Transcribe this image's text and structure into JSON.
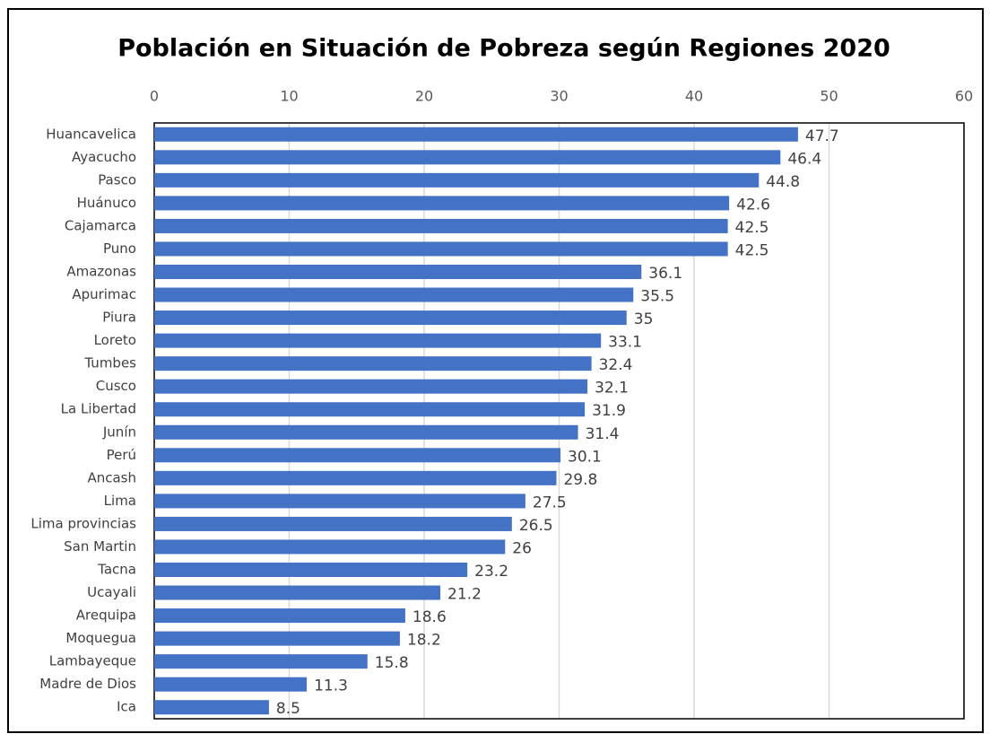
{
  "chart_data": {
    "type": "bar",
    "orientation": "horizontal",
    "title": "Población en Situación de Pobreza según Regiones 2020",
    "categories": [
      "Huancavelica",
      "Ayacucho",
      "Pasco",
      "Huánuco",
      "Cajamarca",
      "Puno",
      "Amazonas",
      "Apurimac",
      "Piura",
      "Loreto",
      "Tumbes",
      "Cusco",
      "La Libertad",
      "Junín",
      "Perú",
      "Ancash",
      "Lima",
      "Lima provincias",
      "San Martin",
      "Tacna",
      "Ucayali",
      "Arequipa",
      "Moquegua",
      "Lambayeque",
      "Madre de Dios",
      "Ica"
    ],
    "values": [
      47.7,
      46.4,
      44.8,
      42.6,
      42.5,
      42.5,
      36.1,
      35.5,
      35,
      33.1,
      32.4,
      32.1,
      31.9,
      31.4,
      30.1,
      29.8,
      27.5,
      26.5,
      26,
      23.2,
      21.2,
      18.6,
      18.2,
      15.8,
      11.3,
      8.5
    ],
    "color": "#4472c4",
    "xlim": [
      0,
      60
    ],
    "xticks": [
      0,
      10,
      20,
      30,
      40,
      50,
      60
    ],
    "grid": true
  }
}
